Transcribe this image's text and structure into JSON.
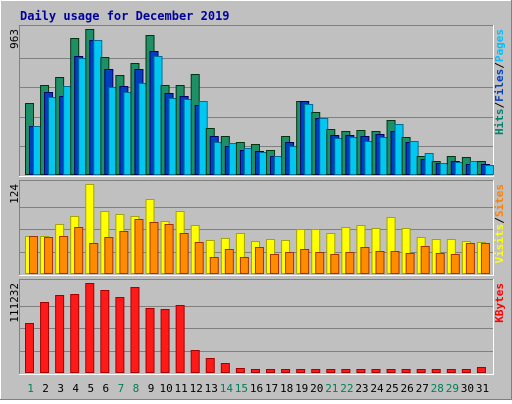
{
  "chart_data": {
    "type": "bar",
    "title": "Daily usage for December 2019",
    "categories": [
      "1",
      "2",
      "3",
      "4",
      "5",
      "6",
      "7",
      "8",
      "9",
      "10",
      "11",
      "12",
      "13",
      "14",
      "15",
      "16",
      "17",
      "18",
      "19",
      "20",
      "21",
      "22",
      "23",
      "24",
      "25",
      "26",
      "27",
      "28",
      "29",
      "30",
      "31"
    ],
    "weekend_days": [
      "1",
      "7",
      "8",
      "14",
      "15",
      "21",
      "22",
      "28",
      "29"
    ],
    "panels": [
      {
        "name": "pages-files-hits",
        "max_label": "963",
        "ymax": 963,
        "legend": [
          {
            "text": "Pages",
            "color": "#00c0ff"
          },
          {
            "text": "Files",
            "color": "#0040c0"
          },
          {
            "text": "Hits",
            "color": "#00806f"
          }
        ],
        "series": [
          {
            "name": "Hits",
            "color": "#1f8f68",
            "values": [
              477,
              596,
              649,
              905,
              963,
              776,
              661,
              737,
              925,
              596,
              596,
              667,
              307,
              258,
              219,
              205,
              163,
              257,
              491,
              418,
              303,
              293,
              299,
              289,
              364,
              252,
              123,
              91,
              128,
              117,
              91
            ]
          },
          {
            "name": "Files",
            "color": "#0040c0",
            "values": [
              325,
              547,
              521,
              788,
              888,
              702,
              584,
              702,
              821,
              538,
              521,
              464,
              258,
              193,
              163,
              160,
              128,
              217,
              491,
              374,
              265,
              262,
              256,
              270,
              288,
              217,
              107,
              76,
              94,
              75,
              74
            ]
          },
          {
            "name": "Pages",
            "color": "#00c8f0",
            "values": [
              325,
              514,
              590,
              772,
              888,
              580,
              546,
              609,
              783,
              508,
              504,
              487,
              217,
              214,
              175,
              150,
              123,
              194,
              467,
              374,
              246,
              248,
              226,
              250,
              334,
              226,
              145,
              76,
              84,
              91,
              65
            ]
          }
        ]
      },
      {
        "name": "sites-visits",
        "max_label": "124",
        "ymax": 124,
        "legend": [
          {
            "text": "Sites",
            "color": "#ff8000"
          },
          {
            "text": "Visits",
            "color": "#ffff00"
          }
        ],
        "series": [
          {
            "name": "Visits",
            "color": "#ffff00",
            "values": [
              52,
              53,
              69,
              80,
              124,
              87,
              82,
              80,
              104,
              73,
              87,
              67,
              47,
              50,
              56,
              46,
              48,
              47,
              62,
              62,
              56,
              65,
              67,
              64,
              79,
              64,
              51,
              48,
              48,
              45,
              44
            ]
          },
          {
            "name": "Sites",
            "color": "#ff8c00",
            "values": [
              52,
              51,
              52,
              65,
              43,
              51,
              59,
              76,
              72,
              69,
              57,
              44,
              23,
              35,
              24,
              37,
              28,
              30,
              34,
              30,
              28,
              30,
              37,
              31,
              31,
              29,
              38,
              29,
              27,
              43,
              43
            ]
          }
        ]
      },
      {
        "name": "kbytes",
        "max_label": "111232",
        "ymax": 111232,
        "legend": [
          {
            "text": "KBytes",
            "color": "#ff0000"
          }
        ],
        "series": [
          {
            "name": "KBytes",
            "color": "#ff1a1a",
            "values": [
              62000,
              88000,
              97000,
              98000,
              111232,
              103000,
              94000,
              106000,
              80000,
              79000,
              84000,
              28000,
              19000,
              12000,
              6000,
              5000,
              5000,
              5000,
              5000,
              5000,
              5000,
              5000,
              5000,
              5000,
              5000,
              5000,
              5000,
              5000,
              5000,
              5000,
              8000
            ]
          }
        ]
      }
    ]
  }
}
